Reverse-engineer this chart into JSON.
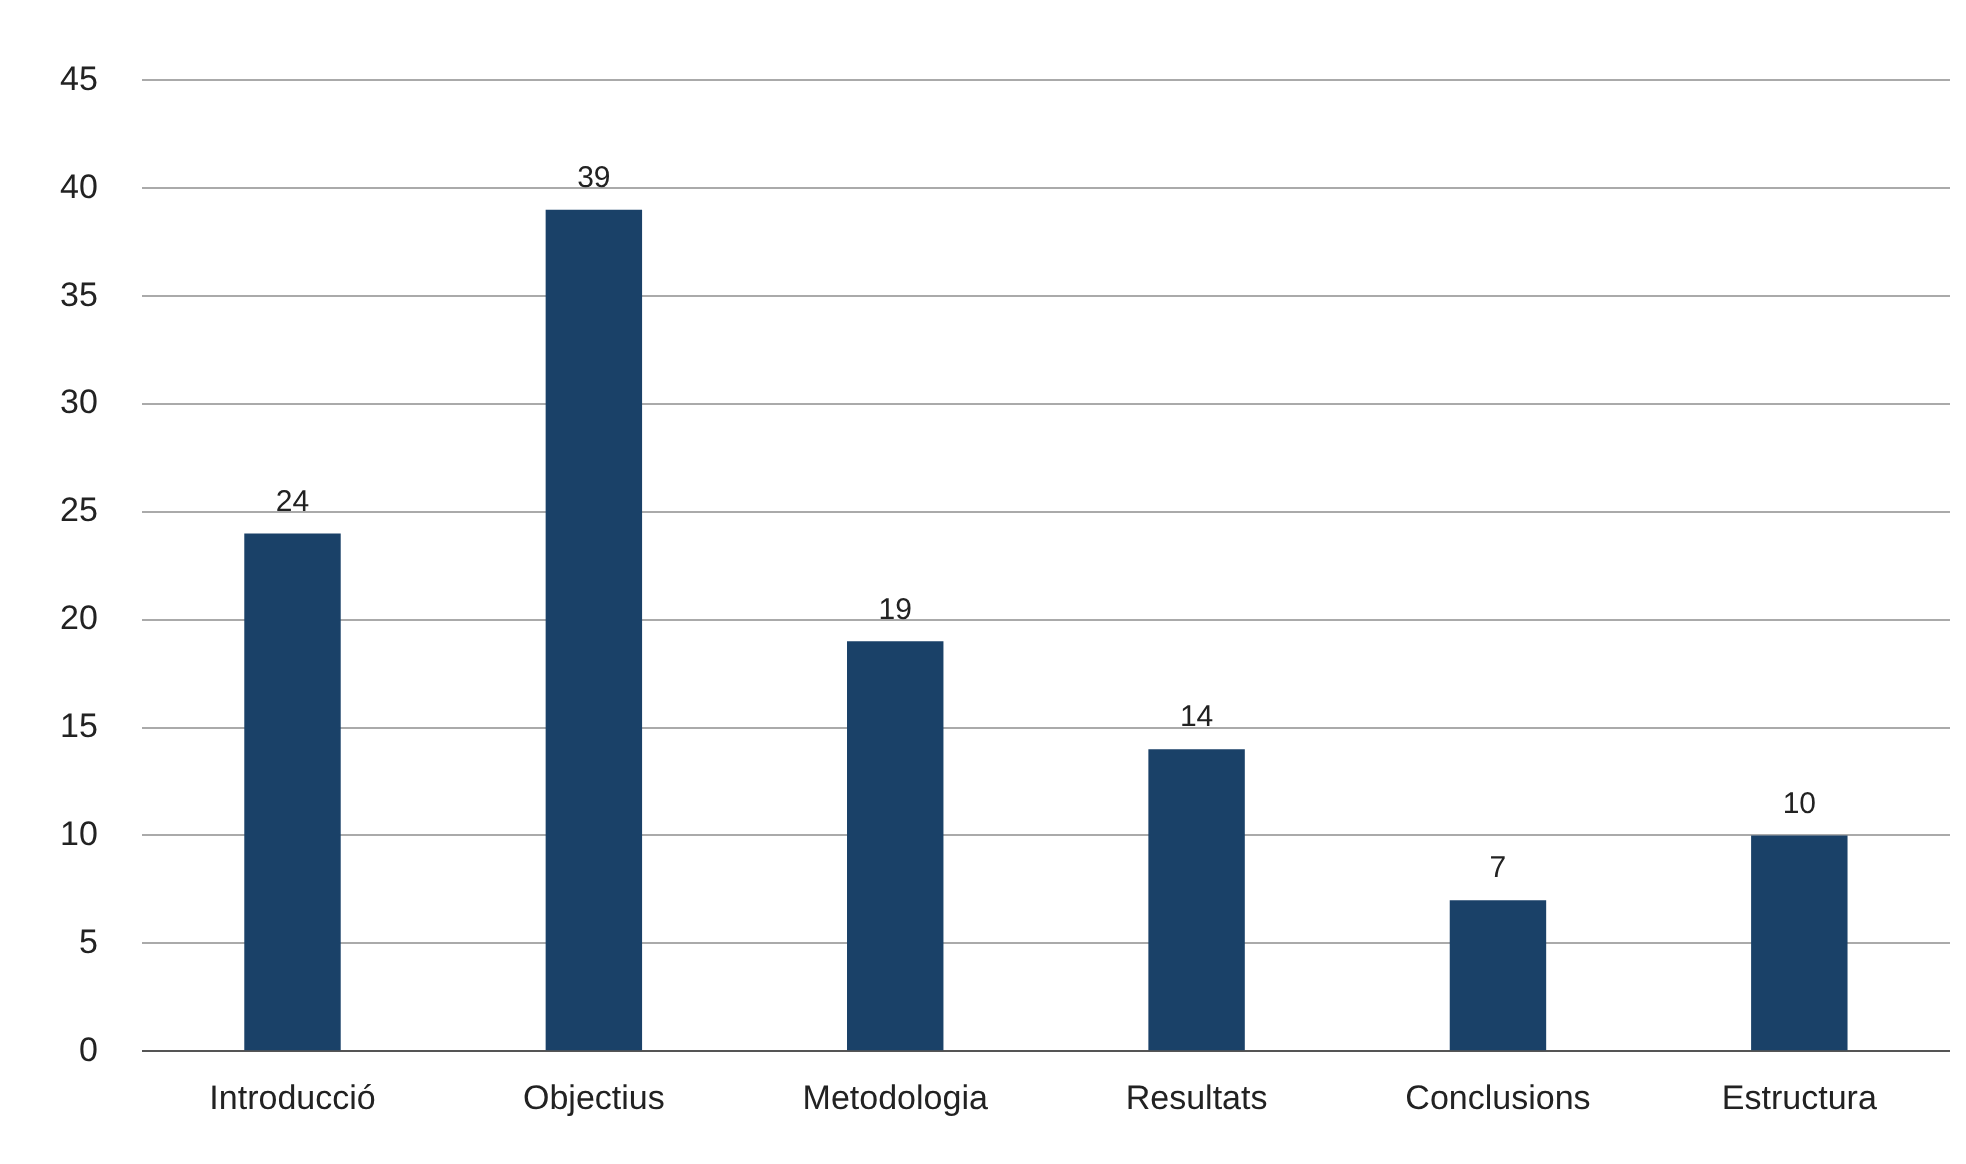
{
  "chart_data": {
    "type": "bar",
    "categories": [
      "Introducció",
      "Objectius",
      "Metodologia",
      "Resultats",
      "Conclusions",
      "Estructura"
    ],
    "values": [
      24,
      39,
      19,
      14,
      7,
      10
    ],
    "color": "#1a4168",
    "ylim": [
      0,
      45
    ],
    "yticks": [
      0,
      5,
      10,
      15,
      20,
      25,
      30,
      35,
      40,
      45
    ],
    "grid": "y",
    "data_labels": true,
    "legend": false
  }
}
